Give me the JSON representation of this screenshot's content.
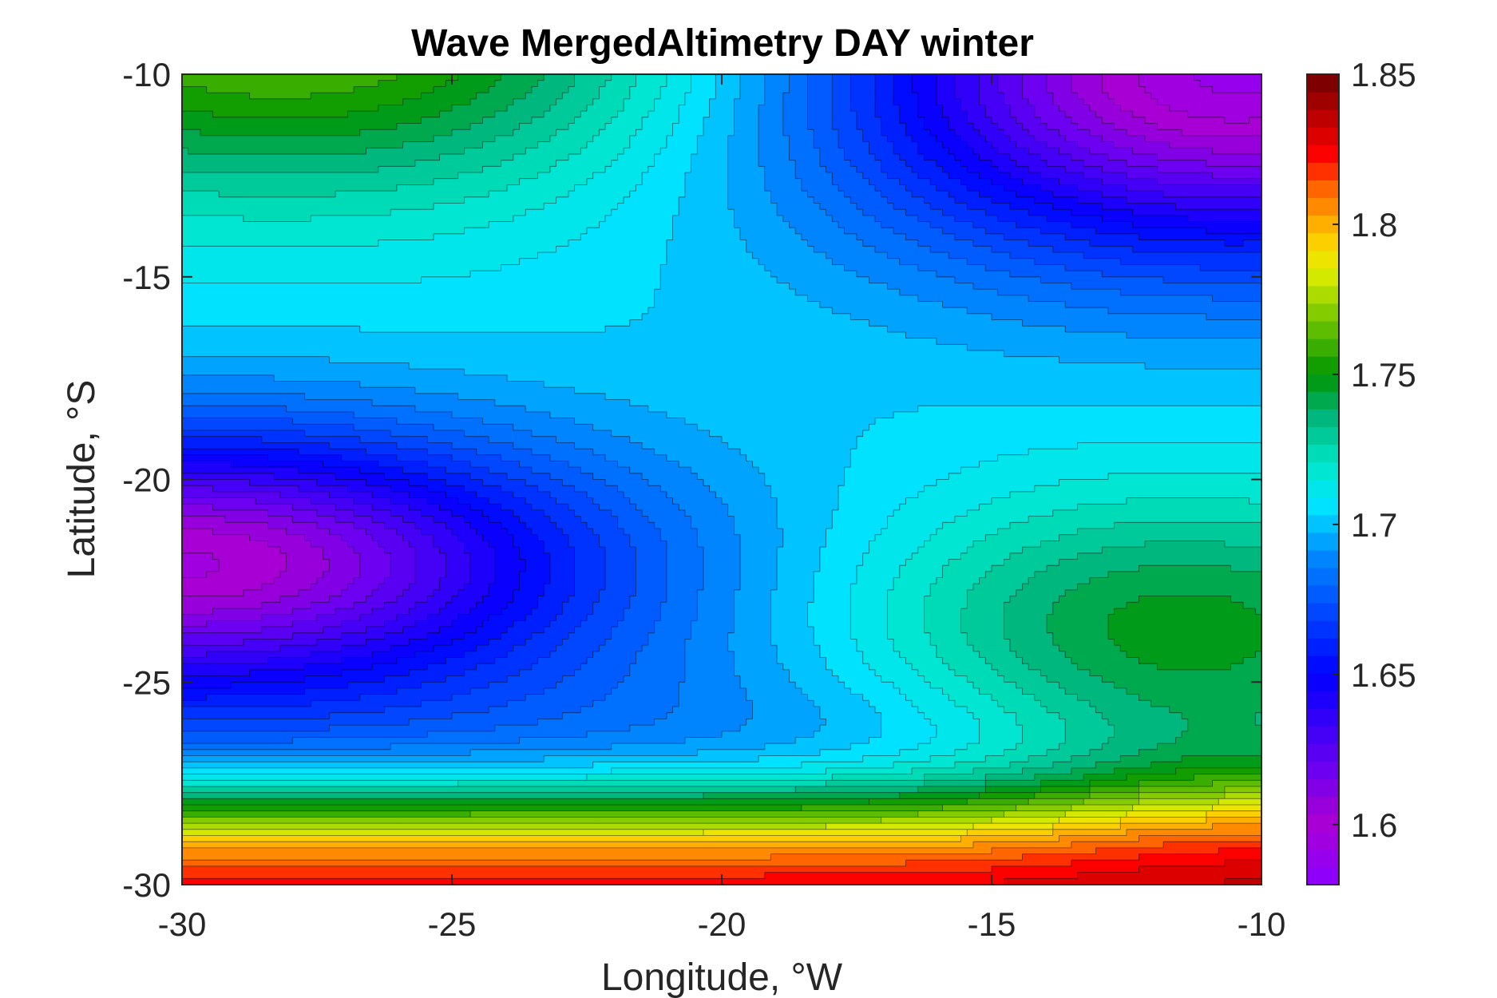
{
  "chart_data": {
    "type": "heatmap",
    "subtype": "filled-contour",
    "title": "Wave MergedAltimetry DAY winter",
    "xlabel": "Longitude, °W",
    "ylabel": "Latitude, °S",
    "xlim": [
      -30,
      -10
    ],
    "ylim": [
      -30,
      -10
    ],
    "xticks": [
      -30,
      -25,
      -20,
      -15,
      -10
    ],
    "yticks": [
      -10,
      -15,
      -20,
      -25,
      -30
    ],
    "xtick_labels": [
      "-30",
      "-25",
      "-20",
      "-15",
      "-10"
    ],
    "ytick_labels": [
      "-10",
      "-15",
      "-20",
      "-25",
      "-30"
    ],
    "colorbar": {
      "range": [
        1.58,
        1.85
      ],
      "ticks": [
        1.85,
        1.8,
        1.75,
        1.7,
        1.65,
        1.6
      ],
      "tick_labels": [
        "1.85",
        "1.8",
        "1.75",
        "1.7",
        "1.65",
        "1.6"
      ],
      "colormap": "jet-like (violet → blue → cyan → green → yellow → red → dark red)",
      "colors": [
        "#8a00ff",
        "#0000ff",
        "#00e5ff",
        "#00a000",
        "#ffff00",
        "#ff0000",
        "#7a0000"
      ]
    },
    "contour_levels": 46,
    "grid": false,
    "features": [
      {
        "lon": -30,
        "lat": -22,
        "value": 1.6
      },
      {
        "lon": -29,
        "lat": -10,
        "value": 1.76
      },
      {
        "lon": -11,
        "lat": -10.5,
        "value": 1.59
      },
      {
        "lon": -17,
        "lat": -17.5,
        "value": 1.71
      },
      {
        "lon": -14,
        "lat": -24,
        "value": 1.73
      },
      {
        "lon": -11,
        "lat": -29.5,
        "value": 1.83
      }
    ]
  }
}
